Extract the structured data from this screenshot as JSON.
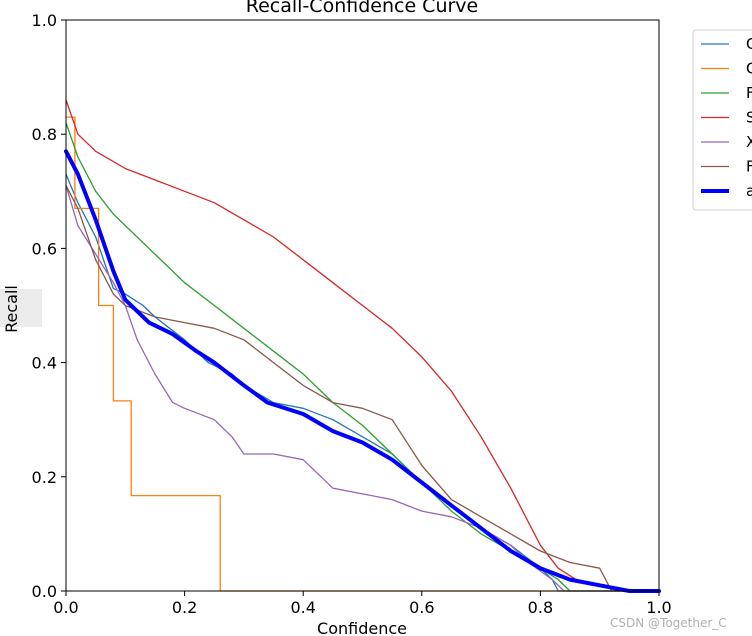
{
  "chart_data": {
    "type": "line",
    "title": "Recall-Confidence Curve",
    "xlabel": "Confidence",
    "ylabel": "Recall",
    "xlim": [
      0,
      1
    ],
    "ylim": [
      0,
      1
    ],
    "x_ticks": [
      "0.0",
      "0.2",
      "0.4",
      "0.6",
      "0.8",
      "1.0"
    ],
    "y_ticks": [
      "0.0",
      "0.2",
      "0.4",
      "0.6",
      "0.8",
      "1.0"
    ],
    "grid": false,
    "legend_position": "outside-top-right",
    "series": [
      {
        "name": "C",
        "color": "#1f77b4",
        "line_width": "thin",
        "points": [
          [
            0,
            0.73
          ],
          [
            0.02,
            0.68
          ],
          [
            0.05,
            0.62
          ],
          [
            0.08,
            0.53
          ],
          [
            0.1,
            0.52
          ],
          [
            0.13,
            0.5
          ],
          [
            0.15,
            0.48
          ],
          [
            0.2,
            0.44
          ],
          [
            0.24,
            0.4
          ],
          [
            0.28,
            0.38
          ],
          [
            0.3,
            0.36
          ],
          [
            0.35,
            0.33
          ],
          [
            0.4,
            0.32
          ],
          [
            0.45,
            0.3
          ],
          [
            0.5,
            0.27
          ],
          [
            0.55,
            0.24
          ],
          [
            0.6,
            0.19
          ],
          [
            0.65,
            0.15
          ],
          [
            0.7,
            0.11
          ],
          [
            0.75,
            0.08
          ],
          [
            0.8,
            0.04
          ],
          [
            0.82,
            0.02
          ],
          [
            0.83,
            0.0
          ],
          [
            1.0,
            0.0
          ]
        ]
      },
      {
        "name": "C",
        "color": "#ff7f0e",
        "line_width": "thin",
        "points": [
          [
            0,
            0.83
          ],
          [
            0.015,
            0.83
          ],
          [
            0.015,
            0.67
          ],
          [
            0.055,
            0.67
          ],
          [
            0.055,
            0.5
          ],
          [
            0.08,
            0.5
          ],
          [
            0.08,
            0.333
          ],
          [
            0.11,
            0.333
          ],
          [
            0.11,
            0.167
          ],
          [
            0.26,
            0.167
          ],
          [
            0.26,
            0.0
          ],
          [
            1.0,
            0.0
          ]
        ]
      },
      {
        "name": "F",
        "color": "#2ca02c",
        "line_width": "thin",
        "points": [
          [
            0,
            0.82
          ],
          [
            0.02,
            0.76
          ],
          [
            0.05,
            0.7
          ],
          [
            0.08,
            0.66
          ],
          [
            0.1,
            0.64
          ],
          [
            0.15,
            0.59
          ],
          [
            0.2,
            0.54
          ],
          [
            0.25,
            0.5
          ],
          [
            0.3,
            0.46
          ],
          [
            0.35,
            0.42
          ],
          [
            0.4,
            0.38
          ],
          [
            0.45,
            0.33
          ],
          [
            0.5,
            0.29
          ],
          [
            0.55,
            0.24
          ],
          [
            0.6,
            0.19
          ],
          [
            0.65,
            0.14
          ],
          [
            0.7,
            0.1
          ],
          [
            0.75,
            0.07
          ],
          [
            0.8,
            0.04
          ],
          [
            0.83,
            0.02
          ],
          [
            0.85,
            0.0
          ],
          [
            1.0,
            0.0
          ]
        ]
      },
      {
        "name": "S",
        "color": "#d62728",
        "line_width": "thin",
        "points": [
          [
            0,
            0.86
          ],
          [
            0.02,
            0.8
          ],
          [
            0.05,
            0.77
          ],
          [
            0.1,
            0.74
          ],
          [
            0.15,
            0.72
          ],
          [
            0.2,
            0.7
          ],
          [
            0.25,
            0.68
          ],
          [
            0.3,
            0.65
          ],
          [
            0.35,
            0.62
          ],
          [
            0.4,
            0.58
          ],
          [
            0.45,
            0.54
          ],
          [
            0.5,
            0.5
          ],
          [
            0.55,
            0.46
          ],
          [
            0.6,
            0.41
          ],
          [
            0.65,
            0.35
          ],
          [
            0.7,
            0.27
          ],
          [
            0.75,
            0.18
          ],
          [
            0.8,
            0.08
          ],
          [
            0.83,
            0.04
          ],
          [
            0.86,
            0.02
          ],
          [
            0.9,
            0.01
          ],
          [
            0.95,
            0.0
          ],
          [
            1.0,
            0.0
          ]
        ]
      },
      {
        "name": "X",
        "color": "#9467bd",
        "line_width": "thin",
        "points": [
          [
            0,
            0.71
          ],
          [
            0.02,
            0.64
          ],
          [
            0.05,
            0.59
          ],
          [
            0.08,
            0.54
          ],
          [
            0.1,
            0.5
          ],
          [
            0.12,
            0.44
          ],
          [
            0.15,
            0.38
          ],
          [
            0.18,
            0.33
          ],
          [
            0.2,
            0.32
          ],
          [
            0.25,
            0.3
          ],
          [
            0.28,
            0.27
          ],
          [
            0.3,
            0.24
          ],
          [
            0.35,
            0.24
          ],
          [
            0.4,
            0.23
          ],
          [
            0.45,
            0.18
          ],
          [
            0.5,
            0.17
          ],
          [
            0.55,
            0.16
          ],
          [
            0.6,
            0.14
          ],
          [
            0.65,
            0.13
          ],
          [
            0.7,
            0.11
          ],
          [
            0.75,
            0.08
          ],
          [
            0.78,
            0.05
          ],
          [
            0.82,
            0.02
          ],
          [
            0.84,
            0.0
          ],
          [
            1.0,
            0.0
          ]
        ]
      },
      {
        "name": "F",
        "color": "#8c564b",
        "line_width": "thin",
        "points": [
          [
            0,
            0.71
          ],
          [
            0.02,
            0.67
          ],
          [
            0.05,
            0.58
          ],
          [
            0.08,
            0.52
          ],
          [
            0.1,
            0.5
          ],
          [
            0.15,
            0.48
          ],
          [
            0.2,
            0.47
          ],
          [
            0.25,
            0.46
          ],
          [
            0.3,
            0.44
          ],
          [
            0.35,
            0.4
          ],
          [
            0.4,
            0.36
          ],
          [
            0.45,
            0.33
          ],
          [
            0.5,
            0.32
          ],
          [
            0.55,
            0.3
          ],
          [
            0.6,
            0.22
          ],
          [
            0.65,
            0.16
          ],
          [
            0.7,
            0.13
          ],
          [
            0.75,
            0.1
          ],
          [
            0.8,
            0.07
          ],
          [
            0.85,
            0.05
          ],
          [
            0.9,
            0.04
          ],
          [
            0.92,
            0.0
          ],
          [
            1.0,
            0.0
          ]
        ]
      },
      {
        "name": "a",
        "color": "#0000ff",
        "line_width": "thick",
        "points": [
          [
            0,
            0.77
          ],
          [
            0.02,
            0.73
          ],
          [
            0.05,
            0.65
          ],
          [
            0.08,
            0.56
          ],
          [
            0.1,
            0.51
          ],
          [
            0.14,
            0.47
          ],
          [
            0.18,
            0.45
          ],
          [
            0.22,
            0.42
          ],
          [
            0.25,
            0.4
          ],
          [
            0.3,
            0.36
          ],
          [
            0.34,
            0.33
          ],
          [
            0.4,
            0.31
          ],
          [
            0.45,
            0.28
          ],
          [
            0.5,
            0.26
          ],
          [
            0.55,
            0.23
          ],
          [
            0.6,
            0.19
          ],
          [
            0.65,
            0.15
          ],
          [
            0.7,
            0.11
          ],
          [
            0.75,
            0.07
          ],
          [
            0.8,
            0.04
          ],
          [
            0.85,
            0.02
          ],
          [
            0.9,
            0.01
          ],
          [
            0.95,
            0.0
          ],
          [
            1.0,
            0.0
          ]
        ]
      }
    ]
  },
  "watermark": "CSDN @Together_C"
}
